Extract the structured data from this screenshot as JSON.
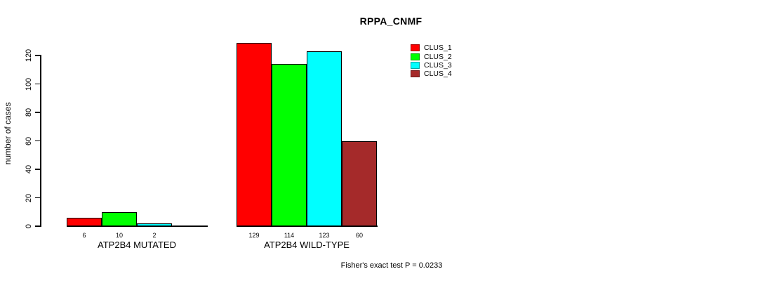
{
  "chart_data": {
    "type": "bar",
    "title": "RPPA_CNMF",
    "xlabel": "",
    "ylabel": "number of cases",
    "ylim": [
      0,
      120
    ],
    "y_ticks": [
      0,
      20,
      40,
      60,
      80,
      100,
      120
    ],
    "grid": false,
    "legend_position": "top-right",
    "bar_value_labels_shown": true,
    "series": [
      {
        "name": "CLUS_1",
        "color": "#FF0000"
      },
      {
        "name": "CLUS_2",
        "color": "#00FF00"
      },
      {
        "name": "CLUS_3",
        "color": "#00FFFF"
      },
      {
        "name": "CLUS_4",
        "color": "#A52A2A"
      }
    ],
    "categories": [
      "ATP2B4 MUTATED",
      "ATP2B4 WILD-TYPE"
    ],
    "groups": [
      {
        "label": "ATP2B4 MUTATED",
        "values": [
          6,
          10,
          2,
          0
        ]
      },
      {
        "label": "ATP2B4 WILD-TYPE",
        "values": [
          129,
          114,
          123,
          60
        ]
      }
    ],
    "footnote": "Fisher's exact test P = 0.0233"
  }
}
